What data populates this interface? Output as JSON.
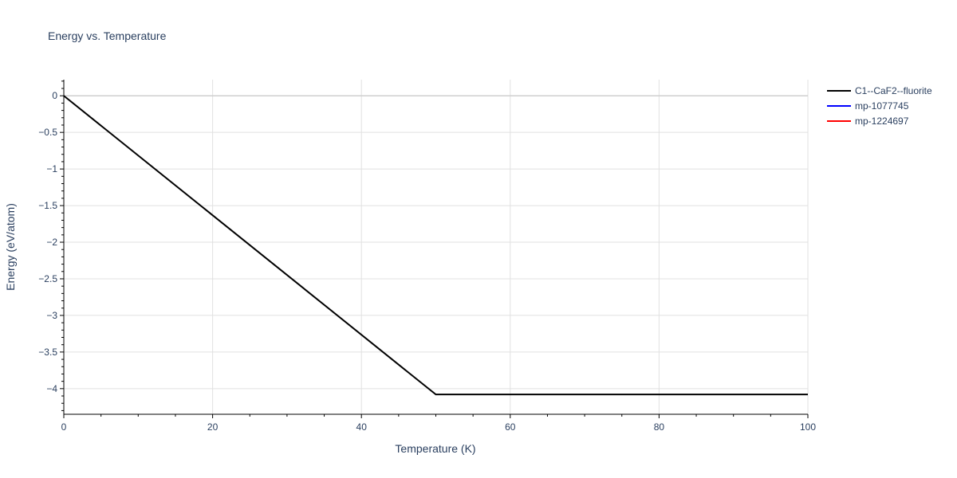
{
  "chart_data": {
    "type": "line",
    "title": "Energy vs. Temperature",
    "xlabel": "Temperature (K)",
    "ylabel": "Energy (eV/atom)",
    "xlim": [
      0,
      100
    ],
    "ylim": [
      -4.35,
      0.22
    ],
    "x_ticks": [
      0,
      20,
      40,
      60,
      80,
      100
    ],
    "x_tick_labels": [
      "0",
      "20",
      "40",
      "60",
      "80",
      "100"
    ],
    "y_ticks": [
      0,
      -0.5,
      -1,
      -1.5,
      -2,
      -2.5,
      -3,
      -3.5,
      -4
    ],
    "y_tick_labels": [
      "0",
      "−0.5",
      "−1",
      "−1.5",
      "−2",
      "−2.5",
      "−3",
      "−3.5",
      "−4"
    ],
    "grid": true,
    "legend_position": "top-right",
    "series": [
      {
        "name": "C1--CaF2--fluorite",
        "color": "#000000",
        "x": [
          0,
          50,
          100
        ],
        "y": [
          0,
          -4.08,
          -4.08
        ]
      },
      {
        "name": "mp-1077745",
        "color": "#0000ff",
        "x": [],
        "y": []
      },
      {
        "name": "mp-1224697",
        "color": "#ff0000",
        "x": [],
        "y": []
      }
    ]
  }
}
